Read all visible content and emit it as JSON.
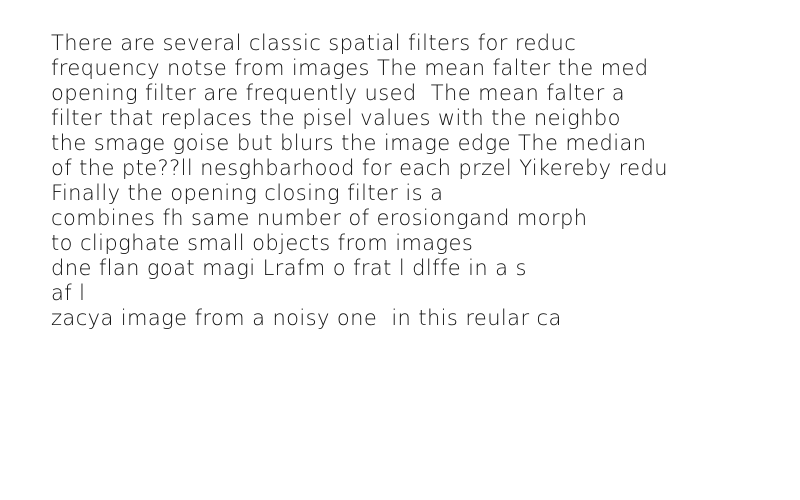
{
  "document": {
    "lines": [
      "There are several classic spatial filters for reduc",
      "frequency notse from images The mean falter the med",
      "opening filter are frequently used  The mean falter a",
      "filter that replaces the pisel values with the neighbo",
      "the smage goise but blurs the image edge The median",
      "of the pte??ll nesghbarhood for each przel Yikereby redu",
      "Finally the opening closing filter is a",
      "combines fh same number of erosiongand morph",
      "to clipghate small objects from images",
      "dne flan goat magi Lrafm o frat l dlffe in a s",
      "af l",
      "zacya image from a noisy one  in this reular ca"
    ]
  }
}
